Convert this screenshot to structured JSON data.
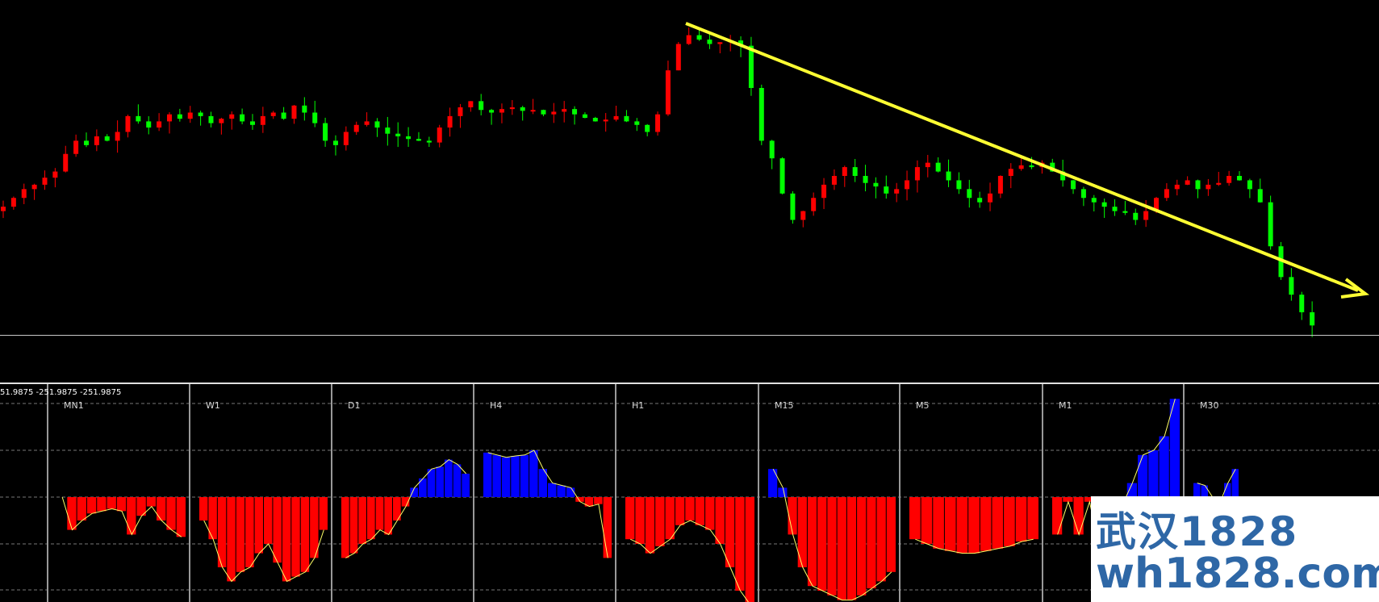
{
  "indicator_header": "51.9875 -251.9875 -251.9875",
  "watermark": {
    "line1": "武汉1828",
    "line2": "wh1828.com",
    "color": "#2e67a6"
  },
  "colors": {
    "bull": "#ff0000",
    "bear": "#00ff00",
    "trendline": "#ffff33",
    "hist_pos": "#0000ff",
    "hist_neg": "#ff0000",
    "hist_outline": "#ffff66"
  },
  "chart_data": [
    {
      "type": "candlestick",
      "title": "",
      "axis_labels": "none printed",
      "closes": [
        165,
        175,
        185,
        190,
        198,
        205,
        225,
        240,
        235,
        245,
        240,
        250,
        268,
        262,
        255,
        262,
        270,
        265,
        272,
        268,
        260,
        265,
        270,
        262,
        258,
        268,
        272,
        265,
        280,
        272,
        260,
        240,
        235,
        250,
        258,
        262,
        255,
        248,
        245,
        242,
        240,
        238,
        255,
        268,
        278,
        285,
        275,
        272,
        276,
        278,
        274,
        275,
        270,
        273,
        276,
        270,
        266,
        262,
        264,
        268,
        262,
        258,
        250,
        270,
        320,
        350,
        360,
        355,
        350,
        352,
        354,
        348,
        300,
        240,
        220,
        180,
        150,
        160,
        175,
        190,
        200,
        210,
        200,
        192,
        188,
        180,
        185,
        195,
        210,
        215,
        205,
        195,
        185,
        175,
        170,
        180,
        200,
        208,
        212,
        210,
        215,
        205,
        195,
        185,
        175,
        170,
        165,
        160,
        158,
        150,
        160,
        175,
        185,
        190,
        195,
        185,
        190,
        192,
        200,
        195,
        185,
        170,
        120,
        85,
        65,
        45,
        30
      ],
      "annotation": "descending trendline with arrow"
    },
    {
      "type": "bar",
      "title": "",
      "segments": [
        {
          "label": "MN1",
          "values": [
            0,
            -0.7,
            -0.5,
            -0.35,
            -0.3,
            -0.25,
            -0.3,
            -0.8,
            -0.4,
            -0.2,
            -0.5,
            -0.7,
            -0.85
          ]
        },
        {
          "label": "W1",
          "values": [
            -0.5,
            -0.9,
            -1.5,
            -1.8,
            -1.6,
            -1.5,
            -1.2,
            -1.0,
            -1.4,
            -1.8,
            -1.7,
            -1.6,
            -1.3,
            -0.7
          ]
        },
        {
          "label": "D1",
          "values": [
            -1.3,
            -1.2,
            -1.0,
            -0.9,
            -0.7,
            -0.8,
            -0.5,
            -0.2,
            0.2,
            0.4,
            0.6,
            0.65,
            0.8,
            0.7,
            0.5
          ]
        },
        {
          "label": "H4",
          "values": [
            0.95,
            0.9,
            0.85,
            0.88,
            0.9,
            1.0,
            0.6,
            0.3,
            0.25,
            0.2,
            -0.1,
            -0.2,
            -0.15,
            -1.3
          ]
        },
        {
          "label": "H1",
          "values": [
            -0.9,
            -1.0,
            -1.2,
            -1.05,
            -0.9,
            -0.6,
            -0.5,
            -0.6,
            -0.7,
            -1.0,
            -1.5,
            -2.0,
            -2.3
          ]
        },
        {
          "label": "M15",
          "values": [
            0.6,
            0.2,
            -0.8,
            -1.5,
            -1.9,
            -2.0,
            -2.1,
            -2.2,
            -2.2,
            -2.1,
            -1.95,
            -1.8,
            -1.6
          ]
        },
        {
          "label": "M5",
          "values": [
            -0.9,
            -1.0,
            -1.1,
            -1.15,
            -1.2,
            -1.2,
            -1.15,
            -1.1,
            -1.05,
            -0.95,
            -0.9
          ]
        },
        {
          "label": "M1",
          "values": [
            -0.8,
            -0.1,
            -0.8,
            -0.1,
            -1.2,
            -0.6,
            -0.2,
            0.3,
            0.9,
            1.0,
            1.3,
            2.1
          ]
        },
        {
          "label": "M30",
          "values": [
            0.3,
            0.25,
            0.0,
            -0.1,
            0.3,
            0.6
          ]
        }
      ]
    }
  ]
}
